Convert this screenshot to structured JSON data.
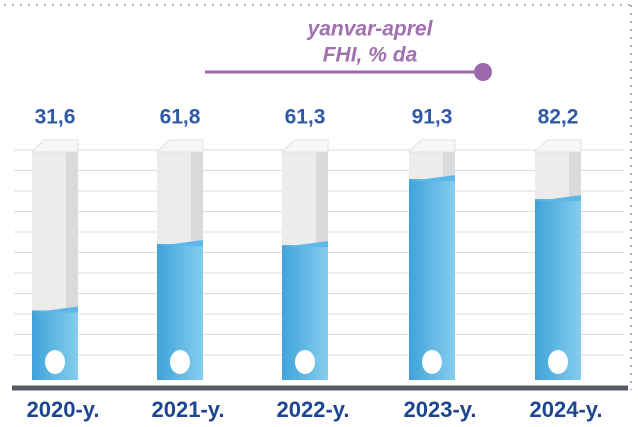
{
  "chart_data": {
    "type": "bar",
    "title": "yanvar-aprel",
    "subtitle": "FHI, % da",
    "categories": [
      "2020-y.",
      "2021-y.",
      "2022-y.",
      "2023-y.",
      "2024-y."
    ],
    "values": [
      31.6,
      61.8,
      61.3,
      91.3,
      82.2
    ],
    "value_labels": [
      "31,6",
      "61,8",
      "61,3",
      "91,3",
      "82,2"
    ],
    "color": "#5bb8e8",
    "ylim": [
      0,
      100
    ],
    "grid": true
  }
}
